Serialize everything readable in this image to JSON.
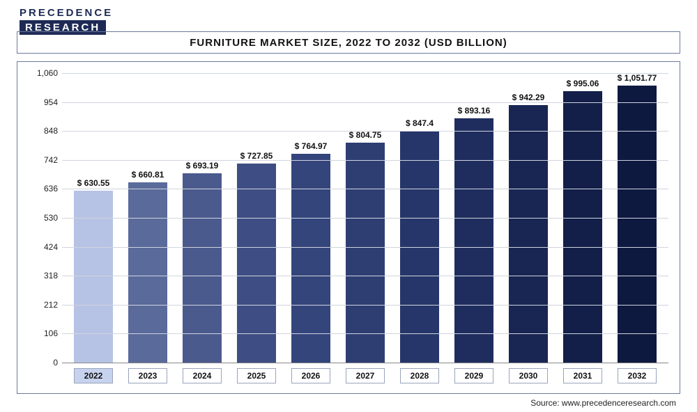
{
  "logo": {
    "line1": "PRECEDENCE",
    "line2": "RESEARCH"
  },
  "title": "FURNITURE MARKET SIZE, 2022 TO 2032 (USD BILLION)",
  "source": "Source: www.precedenceresearch.com",
  "chart": {
    "type": "bar",
    "y_axis": {
      "min": 0,
      "max": 1060,
      "ticks": [
        0,
        106,
        212,
        318,
        424,
        530,
        636,
        742,
        848,
        954,
        1060
      ],
      "tick_labels": [
        "0",
        "106",
        "212",
        "318",
        "424",
        "530",
        "636",
        "742",
        "848",
        "954",
        "1,060"
      ],
      "label_fontsize": 12,
      "label_color": "#222222"
    },
    "grid_color": "#d0d4df",
    "background_color": "#ffffff",
    "bar_width_pct": 72,
    "value_prefix": "$ ",
    "years": [
      "2022",
      "2023",
      "2024",
      "2025",
      "2026",
      "2027",
      "2028",
      "2029",
      "2030",
      "2031",
      "2032"
    ],
    "values": [
      630.55,
      660.81,
      693.19,
      727.85,
      764.97,
      804.75,
      847.4,
      893.16,
      942.29,
      995.06,
      1051.77
    ],
    "value_labels": [
      "$ 630.55",
      "$ 660.81",
      "$ 693.19",
      "$ 727.85",
      "$ 764.97",
      "$ 804.75",
      "$ 847.4",
      "$ 893.16",
      "$ 942.29",
      "$ 995.06",
      "$ 1,051.77"
    ],
    "bar_colors": [
      "#b7c3e4",
      "#5a6a9a",
      "#4b5a8d",
      "#3e4d83",
      "#34457c",
      "#2e3e73",
      "#27366a",
      "#1f2d5e",
      "#192653",
      "#131f48",
      "#0e1940"
    ],
    "highlight_year_index": 0,
    "value_fontsize": 12,
    "x_label_fontsize": 12,
    "title_fontsize": 15
  }
}
